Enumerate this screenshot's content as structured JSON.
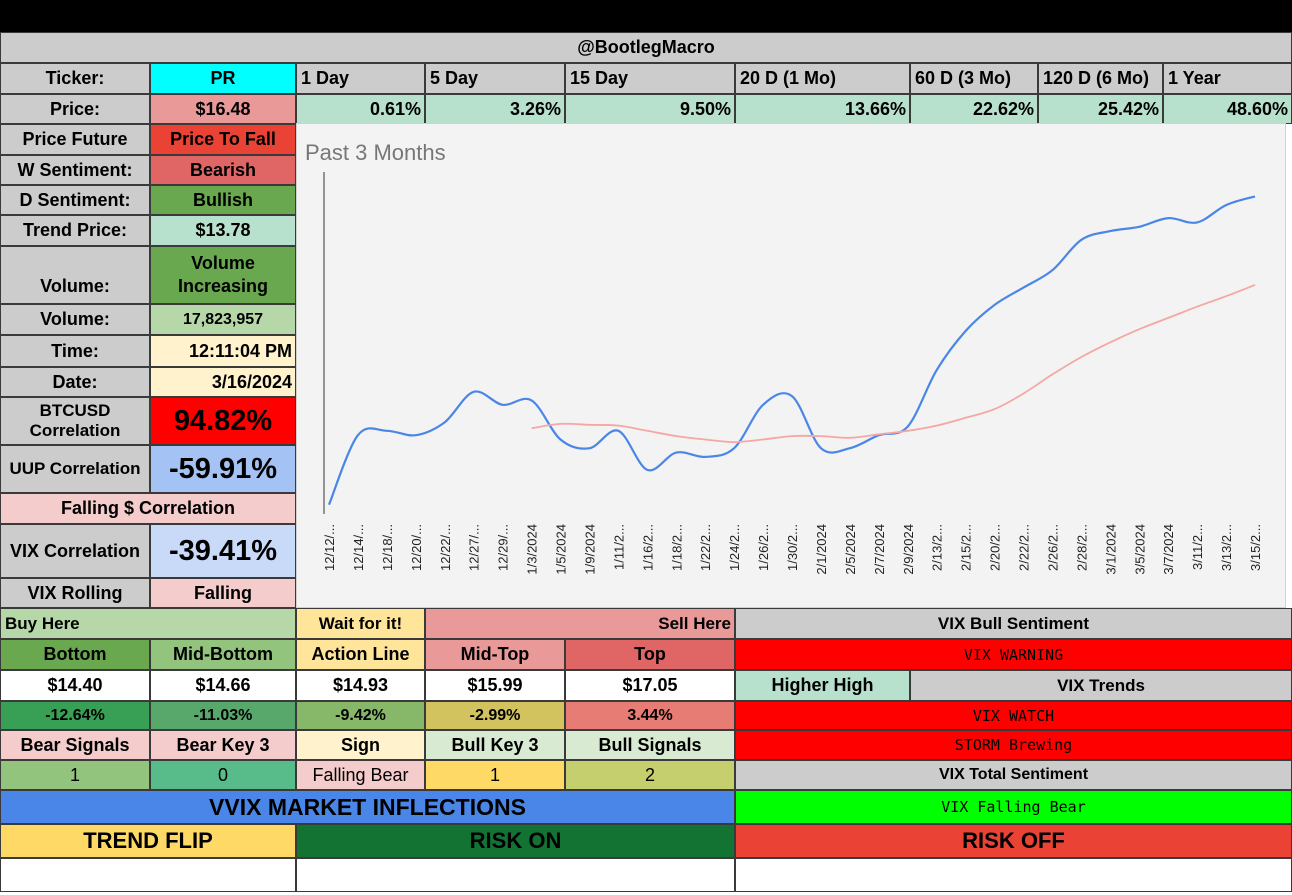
{
  "header": {
    "title": "@BootlegMacro"
  },
  "ticker": {
    "label": "Ticker:",
    "value": "PR"
  },
  "periods": [
    "1 Day",
    "5 Day",
    "15 Day",
    "20 D (1 Mo)",
    "60 D (3 Mo)",
    "120 D (6 Mo)",
    "1 Year"
  ],
  "price": {
    "label": "Price:",
    "value": "$16.48"
  },
  "returns": [
    "0.61%",
    "3.26%",
    "9.50%",
    "13.66%",
    "22.62%",
    "25.42%",
    "48.60%"
  ],
  "left": {
    "price_future_label": "Price Future",
    "price_future_value": "Price To Fall",
    "w_sentiment_label": "W Sentiment:",
    "w_sentiment_value": "Bearish",
    "d_sentiment_label": "D Sentiment:",
    "d_sentiment_value": "Bullish",
    "trend_price_label": "Trend Price:",
    "trend_price_value": "$13.78",
    "volume_trend_label": "Volume:",
    "volume_trend_value": "Volume Increasing",
    "volume_label": "Volume:",
    "volume_value": "17,823,957",
    "time_label": "Time:",
    "time_value": "12:11:04 PM",
    "date_label": "Date:",
    "date_value": "3/16/2024",
    "btc_label": "BTCUSD Correlation",
    "btc_value": "94.82%",
    "uup_label": "UUP Correlation",
    "uup_value": "-59.91%",
    "falling_label": "Falling $ Correlation",
    "vix_label": "VIX Correlation",
    "vix_value": "-39.41%",
    "vix_rolling_label": "VIX Rolling",
    "vix_rolling_value": "Falling"
  },
  "levels": {
    "buy_here": "Buy Here",
    "wait": "Wait for it!",
    "sell_here": "Sell Here",
    "headers": [
      "Bottom",
      "Mid-Bottom",
      "Action Line",
      "Mid-Top",
      "Top"
    ],
    "prices": [
      "$14.40",
      "$14.66",
      "$14.93",
      "$15.99",
      "$17.05"
    ],
    "pcts": [
      "-12.64%",
      "-11.03%",
      "-9.42%",
      "-2.99%",
      "3.44%"
    ],
    "signal_headers": [
      "Bear Signals",
      "Bear Key 3",
      "Sign",
      "Bull Key 3",
      "Bull Signals"
    ],
    "signal_values": [
      "1",
      "0",
      "Falling Bear",
      "1",
      "2"
    ]
  },
  "vix_panel": {
    "bull_sentiment": "VIX Bull Sentiment",
    "warning": "VIX WARNING",
    "higher_high": "Higher High",
    "trends": "VIX Trends",
    "watch": "VIX WATCH",
    "storm": "STORM Brewing",
    "total_sentiment": "VIX Total Sentiment",
    "falling_bear": "VIX Falling Bear"
  },
  "bottom": {
    "vvix": "VVIX MARKET INFLECTIONS",
    "trend_flip": "TREND FLIP",
    "risk_on": "RISK ON",
    "risk_off": "RISK OFF"
  },
  "colors": {
    "cyan": "#00ffff",
    "pink": "#ea9999",
    "light_pink": "#f4cccc",
    "light_green": "#b6d7a8",
    "mint": "#b7e1cd",
    "green": "#6aa84f",
    "red": "#ff0000",
    "light_red": "#e06666",
    "blue_light": "#a4c2f4",
    "grey": "#cccccc",
    "yellow_light": "#fff2cc",
    "blue": "#4a86e8",
    "bright_green": "#00ff00",
    "dark_green": "#137333",
    "gold": "#ffd966",
    "tomato": "#ea4335",
    "price_line": "#4a86e8",
    "avg_line": "#f4a7a3"
  },
  "chart_data": {
    "type": "line",
    "title": "Past 3 Months",
    "xlabel": "",
    "ylabel": "",
    "categories": [
      "12/12/...",
      "12/14/...",
      "12/18/...",
      "12/20/...",
      "12/22/...",
      "12/27/...",
      "12/29/...",
      "1/3/2024",
      "1/5/2024",
      "1/9/2024",
      "1/11/2...",
      "1/16/2...",
      "1/18/2...",
      "1/22/2...",
      "1/24/2...",
      "1/26/2...",
      "1/30/2...",
      "2/1/2024",
      "2/5/2024",
      "2/7/2024",
      "2/9/2024",
      "2/13/2...",
      "2/15/2...",
      "2/20/2...",
      "2/22/2...",
      "2/26/2...",
      "2/28/2...",
      "3/1/2024",
      "3/5/2024",
      "3/7/2024",
      "3/11/2...",
      "3/13/2...",
      "3/15/2..."
    ],
    "series": [
      {
        "values": [
          13.05,
          13.85,
          13.9,
          13.85,
          14.0,
          14.35,
          14.2,
          14.25,
          13.8,
          13.7,
          13.9,
          13.45,
          13.65,
          13.6,
          13.7,
          14.2,
          14.3,
          13.7,
          13.7,
          13.85,
          13.95,
          14.6,
          15.05,
          15.35,
          15.55,
          15.75,
          16.1,
          16.2,
          16.25,
          16.35,
          16.3,
          16.5,
          16.6
        ]
      },
      {
        "values": [
          null,
          null,
          null,
          null,
          null,
          null,
          null,
          13.93,
          13.98,
          13.97,
          13.96,
          13.9,
          13.84,
          13.8,
          13.77,
          13.8,
          13.84,
          13.84,
          13.82,
          13.86,
          13.9,
          13.96,
          14.05,
          14.15,
          14.33,
          14.55,
          14.75,
          14.92,
          15.07,
          15.2,
          15.33,
          15.45,
          15.58
        ]
      }
    ]
  }
}
